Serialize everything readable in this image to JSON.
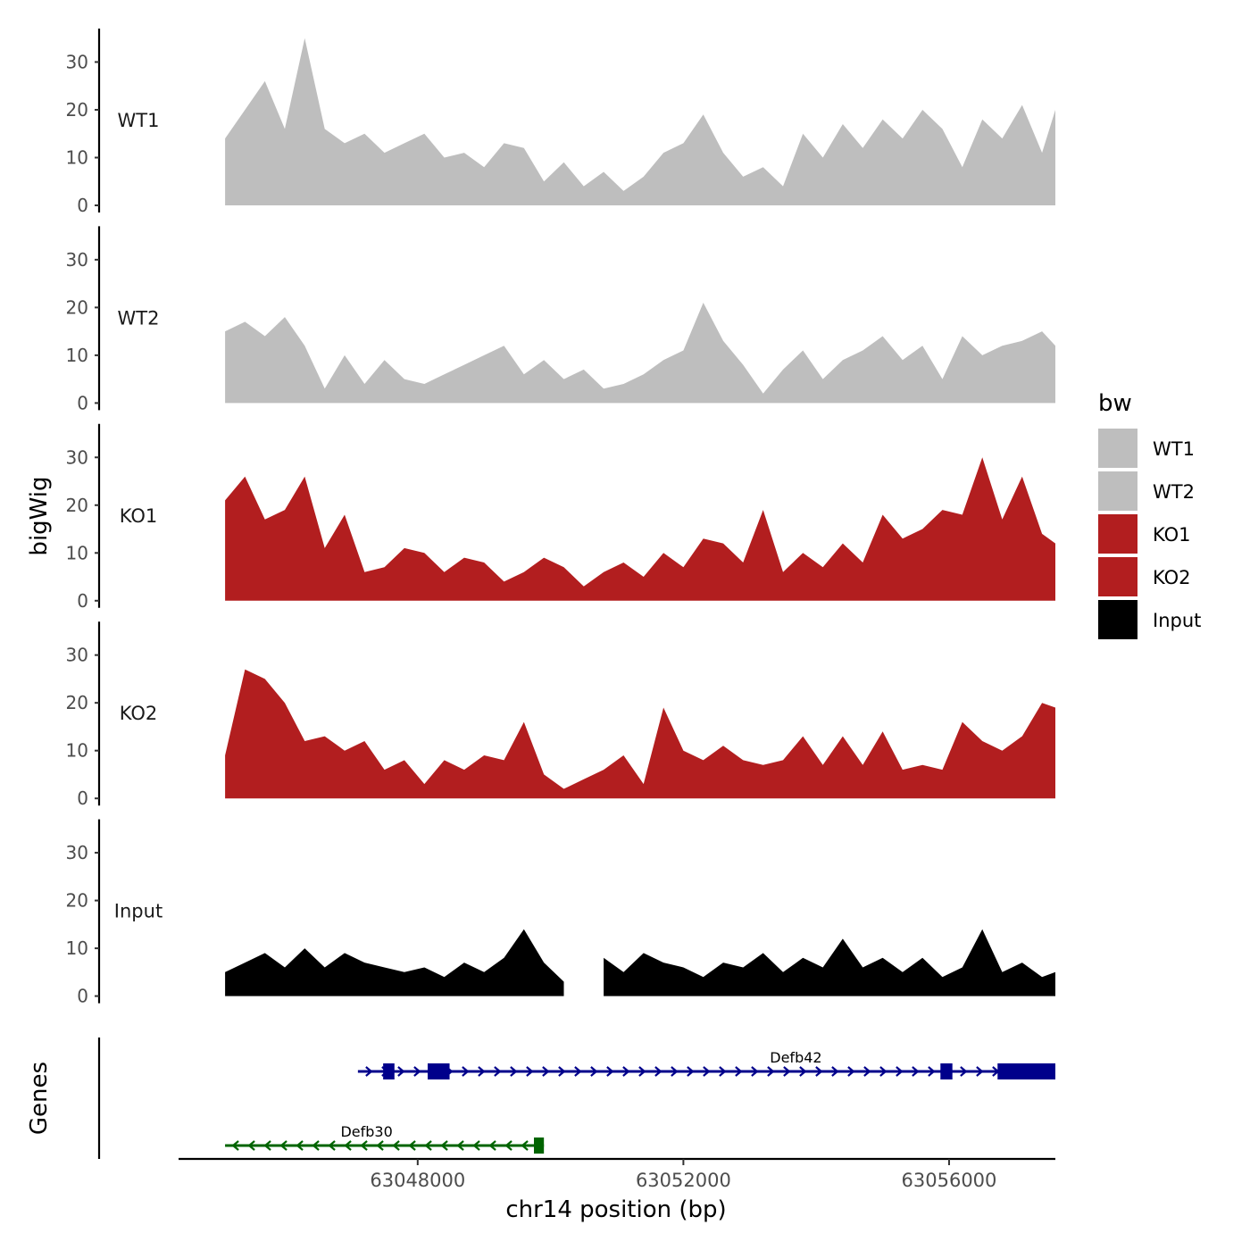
{
  "chart_data": {
    "type": "area",
    "xlabel": "chr14 position (bp)",
    "ylabel": "bigWig",
    "genes_label": "Genes",
    "x_domain": [
      63044400,
      63057600
    ],
    "x_ticks": [
      63048000,
      63052000,
      63056000
    ],
    "x_tick_labels": [
      "63048000",
      "63052000",
      "63056000"
    ],
    "ylim": [
      0,
      37
    ],
    "y_ticks": [
      0,
      10,
      20,
      30
    ],
    "y_tick_labels": [
      "0",
      "10",
      "20",
      "30"
    ],
    "legend": {
      "title": "bw",
      "entries": [
        {
          "label": "WT1",
          "color": "#bebebe"
        },
        {
          "label": "WT2",
          "color": "#bebebe"
        },
        {
          "label": "KO1",
          "color": "#b21e1f"
        },
        {
          "label": "KO2",
          "color": "#b21e1f"
        },
        {
          "label": "Input",
          "color": "#000000"
        }
      ]
    },
    "series": [
      {
        "name": "WT1",
        "color": "#bebebe",
        "x": [
          63045100,
          63045400,
          63045700,
          63046000,
          63046300,
          63046600,
          63046900,
          63047200,
          63047500,
          63047800,
          63048100,
          63048400,
          63048700,
          63049000,
          63049300,
          63049600,
          63049900,
          63050200,
          63050500,
          63050800,
          63051100,
          63051400,
          63051700,
          63052000,
          63052300,
          63052600,
          63052900,
          63053200,
          63053500,
          63053800,
          63054100,
          63054400,
          63054700,
          63055000,
          63055300,
          63055600,
          63055900,
          63056200,
          63056500,
          63056800,
          63057100,
          63057400,
          63057600
        ],
        "values": [
          14,
          20,
          26,
          16,
          35,
          16,
          13,
          15,
          11,
          13,
          15,
          10,
          11,
          8,
          13,
          12,
          5,
          9,
          4,
          7,
          3,
          6,
          11,
          13,
          19,
          11,
          6,
          8,
          4,
          15,
          10,
          17,
          12,
          18,
          14,
          20,
          16,
          8,
          18,
          14,
          21,
          11,
          20
        ]
      },
      {
        "name": "WT2",
        "color": "#bebebe",
        "x": [
          63045100,
          63045400,
          63045700,
          63046000,
          63046300,
          63046600,
          63046900,
          63047200,
          63047500,
          63047800,
          63048100,
          63048400,
          63048700,
          63049000,
          63049300,
          63049600,
          63049900,
          63050200,
          63050500,
          63050800,
          63051100,
          63051400,
          63051700,
          63052000,
          63052300,
          63052600,
          63052900,
          63053200,
          63053500,
          63053800,
          63054100,
          63054400,
          63054700,
          63055000,
          63055300,
          63055600,
          63055900,
          63056200,
          63056500,
          63056800,
          63057100,
          63057400,
          63057600
        ],
        "values": [
          15,
          17,
          14,
          18,
          12,
          3,
          10,
          4,
          9,
          5,
          4,
          6,
          8,
          10,
          12,
          6,
          9,
          5,
          7,
          3,
          4,
          6,
          9,
          11,
          21,
          13,
          8,
          2,
          7,
          11,
          5,
          9,
          11,
          14,
          9,
          12,
          5,
          14,
          10,
          12,
          13,
          15,
          12
        ]
      },
      {
        "name": "KO1",
        "color": "#b21e1f",
        "x": [
          63045100,
          63045400,
          63045700,
          63046000,
          63046300,
          63046600,
          63046900,
          63047200,
          63047500,
          63047800,
          63048100,
          63048400,
          63048700,
          63049000,
          63049300,
          63049600,
          63049900,
          63050200,
          63050500,
          63050800,
          63051100,
          63051400,
          63051700,
          63052000,
          63052300,
          63052600,
          63052900,
          63053200,
          63053500,
          63053800,
          63054100,
          63054400,
          63054700,
          63055000,
          63055300,
          63055600,
          63055900,
          63056200,
          63056500,
          63056800,
          63057100,
          63057400,
          63057600
        ],
        "values": [
          21,
          26,
          17,
          19,
          26,
          11,
          18,
          6,
          7,
          11,
          10,
          6,
          9,
          8,
          4,
          6,
          9,
          7,
          3,
          6,
          8,
          5,
          10,
          7,
          13,
          12,
          8,
          19,
          6,
          10,
          7,
          12,
          8,
          18,
          13,
          15,
          19,
          18,
          30,
          17,
          26,
          14,
          12
        ]
      },
      {
        "name": "KO2",
        "color": "#b21e1f",
        "x": [
          63045100,
          63045400,
          63045700,
          63046000,
          63046300,
          63046600,
          63046900,
          63047200,
          63047500,
          63047800,
          63048100,
          63048400,
          63048700,
          63049000,
          63049300,
          63049600,
          63049900,
          63050200,
          63050500,
          63050800,
          63051100,
          63051400,
          63051700,
          63052000,
          63052300,
          63052600,
          63052900,
          63053200,
          63053500,
          63053800,
          63054100,
          63054400,
          63054700,
          63055000,
          63055300,
          63055600,
          63055900,
          63056200,
          63056500,
          63056800,
          63057100,
          63057400,
          63057600
        ],
        "values": [
          9,
          27,
          25,
          20,
          12,
          13,
          10,
          12,
          6,
          8,
          3,
          8,
          6,
          9,
          8,
          16,
          5,
          2,
          4,
          6,
          9,
          3,
          19,
          10,
          8,
          11,
          8,
          7,
          8,
          13,
          7,
          13,
          7,
          14,
          6,
          7,
          6,
          16,
          12,
          10,
          13,
          20,
          19
        ]
      },
      {
        "name": "Input",
        "color": "#000000",
        "x": [
          63045100,
          63045400,
          63045700,
          63046000,
          63046300,
          63046600,
          63046900,
          63047200,
          63047500,
          63047800,
          63048100,
          63048400,
          63048700,
          63049000,
          63049300,
          63049600,
          63049900,
          63050200,
          63050500,
          63050800,
          63051100,
          63051400,
          63051700,
          63052000,
          63052300,
          63052600,
          63052900,
          63053200,
          63053500,
          63053800,
          63054100,
          63054400,
          63054700,
          63055000,
          63055300,
          63055600,
          63055900,
          63056200,
          63056500,
          63056800,
          63057100,
          63057400,
          63057600
        ],
        "values": [
          5,
          7,
          9,
          6,
          10,
          6,
          9,
          7,
          6,
          5,
          6,
          4,
          7,
          5,
          8,
          14,
          7,
          3,
          null,
          8,
          5,
          9,
          7,
          6,
          4,
          7,
          6,
          9,
          5,
          8,
          6,
          12,
          6,
          8,
          5,
          8,
          4,
          6,
          14,
          5,
          7,
          4,
          5
        ]
      }
    ],
    "genes": [
      {
        "name": "Defb42",
        "strand": "+",
        "color": "#00008b",
        "start": 63047100,
        "end": 63057600,
        "exons": [
          [
            63047480,
            63047650
          ],
          [
            63048150,
            63048480
          ],
          [
            63055870,
            63056050
          ],
          [
            63056730,
            63057600
          ]
        ]
      },
      {
        "name": "Defb30",
        "strand": "-",
        "color": "#006400",
        "start": 63045100,
        "end": 63049900,
        "exons": [
          [
            63049750,
            63049900
          ]
        ]
      }
    ]
  }
}
